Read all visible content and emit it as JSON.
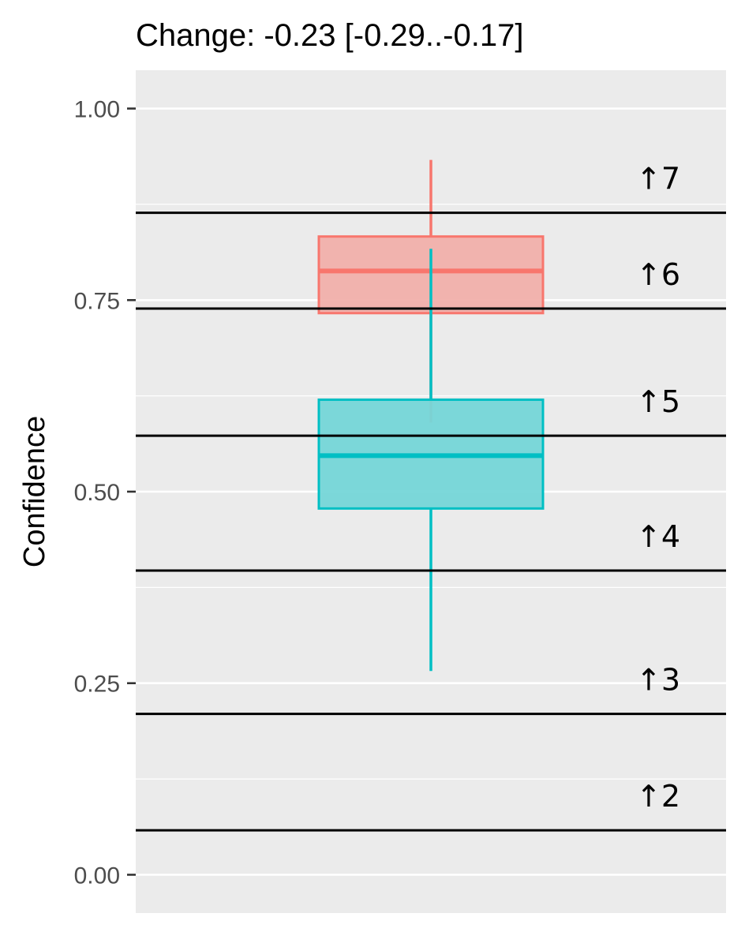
{
  "chart_data": {
    "type": "boxplot",
    "title": "Change: -0.23 [-0.29..-0.17]",
    "ylabel": "Confidence",
    "xlabel": "",
    "ylim": [
      -0.05,
      1.05
    ],
    "yticks": [
      0.0,
      0.25,
      0.5,
      0.75,
      1.0
    ],
    "ytick_labels": [
      "0.00",
      "0.25",
      "0.50",
      "0.75",
      "1.00"
    ],
    "grid": true,
    "background": "#ebebeb",
    "series": [
      {
        "color": "#f8766d",
        "fill": "#f1b0ab",
        "whisker_low": 0.59,
        "q1": 0.733,
        "median": 0.788,
        "q3": 0.833,
        "whisker_high": 0.933
      },
      {
        "color": "#00bfc4",
        "fill": "#75d6d8",
        "whisker_low": 0.266,
        "q1": 0.478,
        "median": 0.547,
        "q3": 0.62,
        "whisker_high": 0.817
      }
    ],
    "thresholds": [
      {
        "label": "↑2",
        "value": 0.058
      },
      {
        "label": "↑3",
        "value": 0.21
      },
      {
        "label": "↑4",
        "value": 0.397
      },
      {
        "label": "↑5",
        "value": 0.573
      },
      {
        "label": "↑6",
        "value": 0.739
      },
      {
        "label": "↑7",
        "value": 0.864
      }
    ]
  }
}
